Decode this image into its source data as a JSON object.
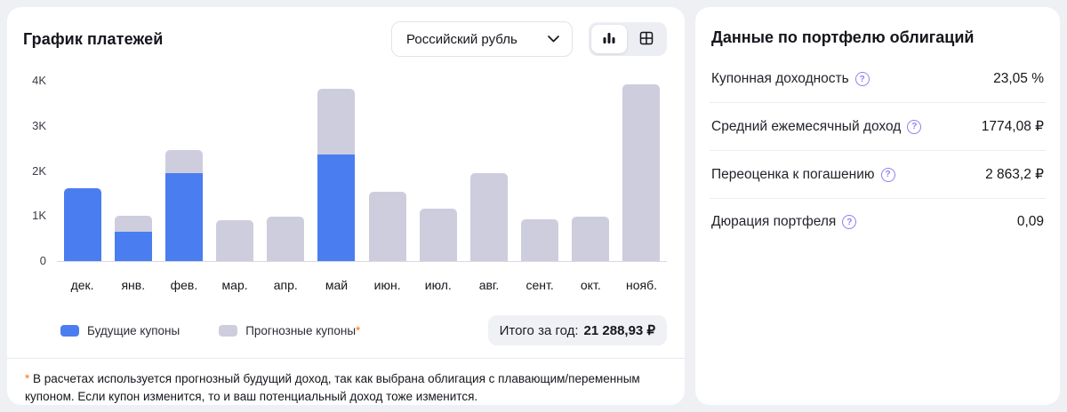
{
  "chart_panel": {
    "title": "График платежей",
    "currency_dropdown": {
      "value": "Российский рубль"
    },
    "view_toggle": {
      "selected": "bar-chart-view",
      "options": [
        "bar-chart-view",
        "table-view"
      ]
    },
    "legend": [
      {
        "label": "Будущие купоны",
        "color": "#4a7df0"
      },
      {
        "label": "Прогнозные купоны",
        "asterisk": "*",
        "color": "#cdcdde"
      }
    ],
    "total": {
      "label": "Итого за год:",
      "value": "21 288,93 ₽"
    },
    "footnote": {
      "asterisk": "*",
      "text": " В расчетах используется прогнозный будущий доход, так как выбрана облигация с плавающим/переменным купоном. Если купон изменится, то и ваш потенциальный доход тоже изменится."
    }
  },
  "chart_data": {
    "type": "bar",
    "stacked": true,
    "title": "График платежей",
    "categories": [
      "дек.",
      "янв.",
      "фев.",
      "мар.",
      "апр.",
      "май",
      "июн.",
      "июл.",
      "авг.",
      "сент.",
      "окт.",
      "нояб."
    ],
    "series": [
      {
        "name": "Будущие купоны",
        "color": "#4a7df0",
        "values": [
          1600,
          650,
          1950,
          0,
          0,
          2350,
          0,
          0,
          0,
          0,
          0,
          0
        ]
      },
      {
        "name": "Прогнозные купоны",
        "color": "#cdcdde",
        "values": [
          0,
          350,
          500,
          900,
          975,
          1450,
          1520,
          1150,
          1950,
          920,
          990,
          3900
        ]
      }
    ],
    "ylim": [
      0,
      4000
    ],
    "yticks": [
      "4K",
      "3K",
      "2K",
      "1K",
      "0"
    ],
    "grid": false,
    "legend_position": "bottom"
  },
  "portfolio_panel": {
    "title": "Данные по портфелю облигаций",
    "rows": [
      {
        "label": "Купонная доходность",
        "value": "23,05 %"
      },
      {
        "label": "Средний ежемесячный доход",
        "value": "1774,08 ₽"
      },
      {
        "label": "Переоценка к погашению",
        "value": "2 863,2 ₽"
      },
      {
        "label": "Дюрация портфеля",
        "value": "0,09"
      }
    ]
  },
  "colors": {
    "accent_blue": "#4a7df0",
    "forecast_lavender": "#cdcdde",
    "asterisk_orange": "#f97316",
    "help_purple": "#8d80f2",
    "page_bg": "#eef0f4"
  }
}
